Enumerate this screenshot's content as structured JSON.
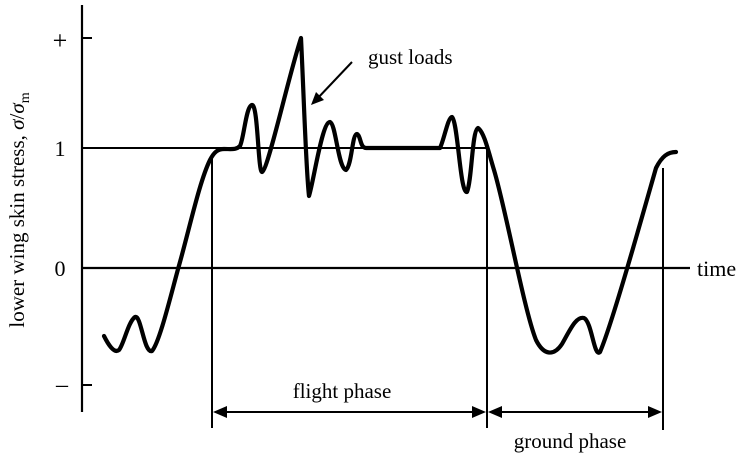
{
  "diagram": {
    "y_axis_label": "lower wing skin stress, σ/σm",
    "y_axis_label_main": "lower wing skin stress, ",
    "y_axis_label_sigma": "σ",
    "y_axis_label_slash": "/",
    "y_axis_label_sigma_m": "σ",
    "y_axis_label_sub": "m",
    "x_axis_label": "time",
    "ticks": {
      "plus": "+",
      "one": "1",
      "zero": "0",
      "minus": "–"
    },
    "annotations": {
      "gust_loads": "gust loads",
      "flight_phase": "flight phase",
      "ground_phase": "ground phase"
    },
    "line_color": "#000000"
  }
}
